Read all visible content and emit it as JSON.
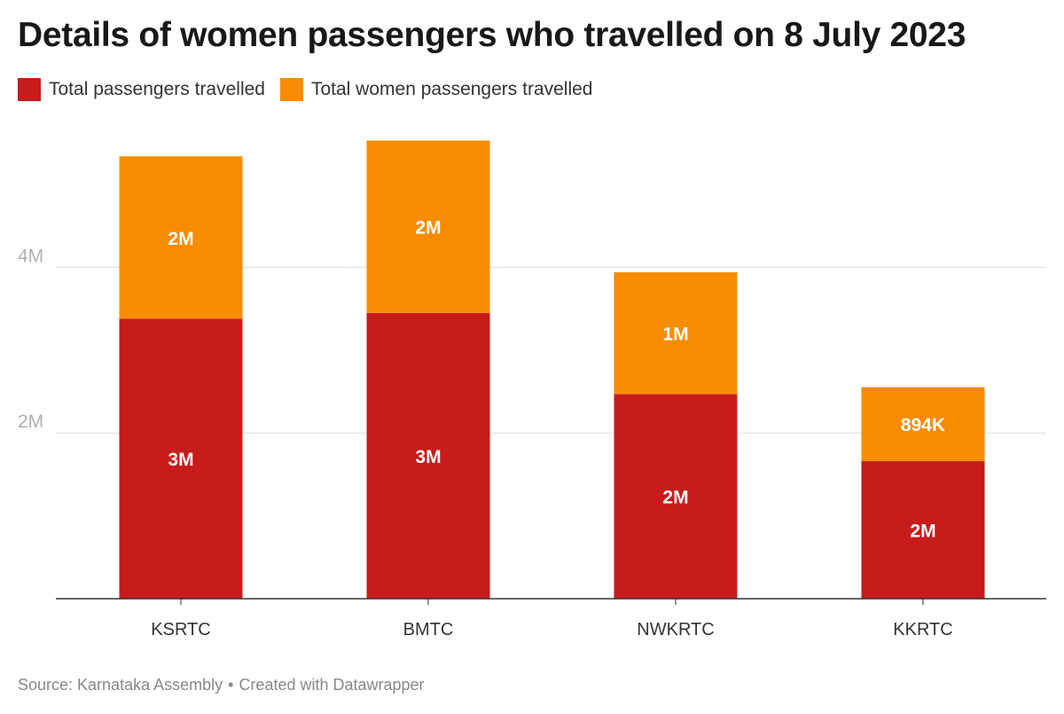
{
  "header": {
    "title": "Details of women passengers who travelled on 8 July 2023"
  },
  "footer": {
    "source": "Source: Karnataka Assembly",
    "separator": "•",
    "credit": "Created with Datawrapper"
  },
  "colors": {
    "total": "#c81b1b",
    "women": "#f78c00",
    "grid": "#dddddd",
    "axis": "#333333"
  },
  "chart_data": {
    "type": "bar",
    "stacked": true,
    "title": "Details of women passengers who travelled on 8 July 2023",
    "xlabel": "",
    "ylabel": "",
    "ylim": [
      0,
      5600000
    ],
    "yticks": [
      {
        "value": 2000000,
        "label": "2M"
      },
      {
        "value": 4000000,
        "label": "4M"
      }
    ],
    "grid": true,
    "legend_position": "top-left",
    "categories": [
      "KSRTC",
      "BMTC",
      "NWKRTC",
      "KKRTC"
    ],
    "series": [
      {
        "name": "Total passengers travelled",
        "color": "#c81b1b",
        "values": [
          3380000,
          3450000,
          2470000,
          1660000
        ],
        "labels": [
          "3M",
          "3M",
          "2M",
          "2M"
        ]
      },
      {
        "name": "Total women passengers travelled",
        "color": "#f78c00",
        "values": [
          1960000,
          2080000,
          1470000,
          894000
        ],
        "labels": [
          "2M",
          "2M",
          "1M",
          "894K"
        ]
      }
    ]
  }
}
